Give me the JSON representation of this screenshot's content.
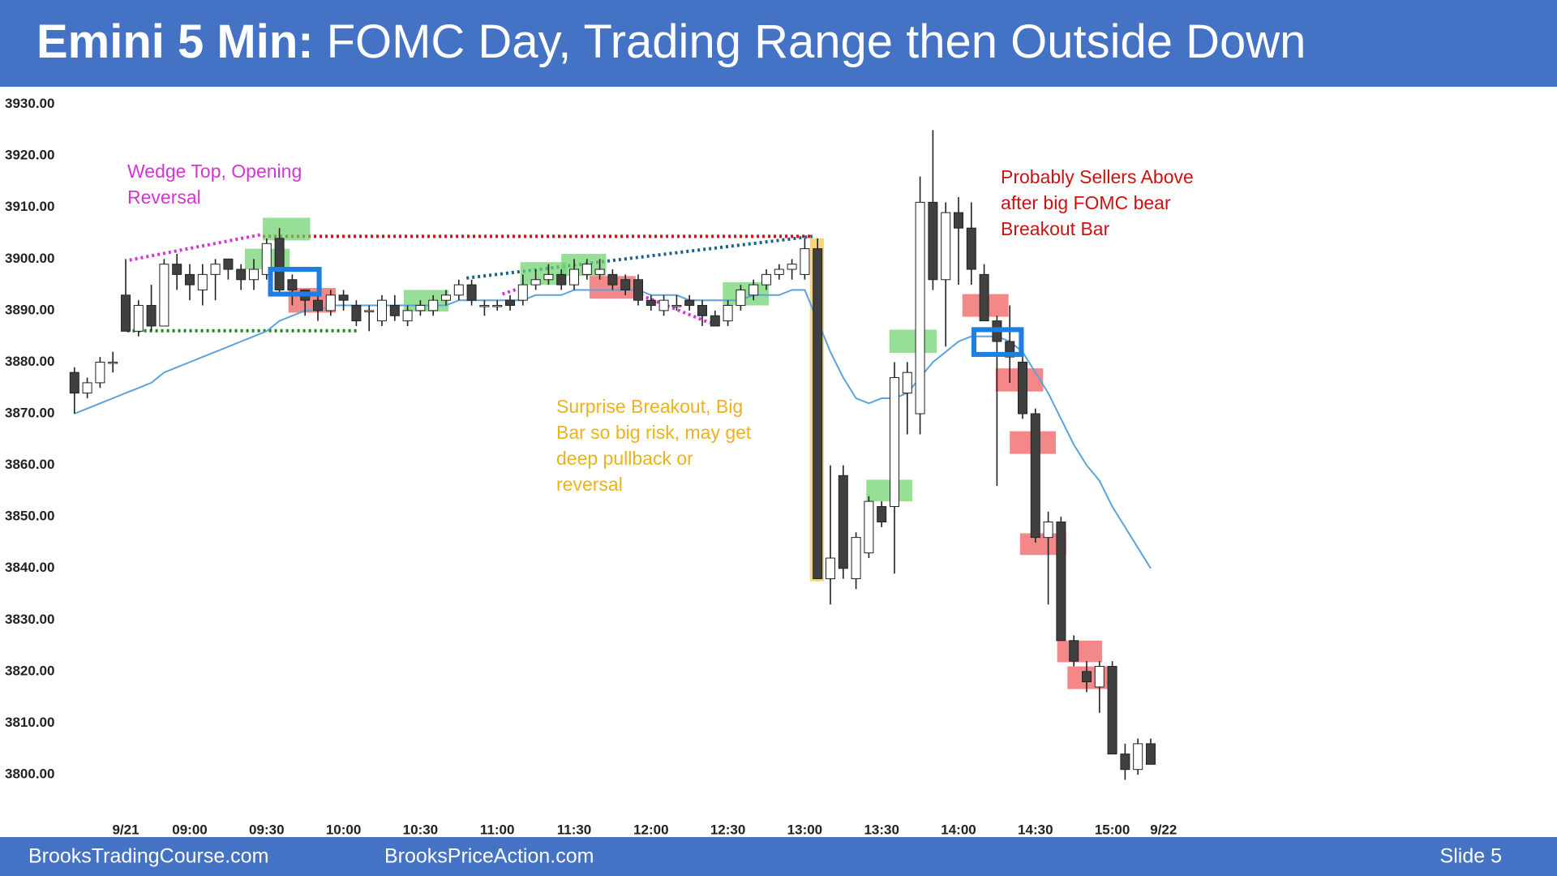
{
  "chart_data": {
    "type": "candlestick",
    "title": "Emini 5 Min:",
    "subtitle": "FOMC Day, Trading Range then Outside Down",
    "categories": [
      null,
      null,
      null,
      null,
      "9/21",
      null,
      null,
      null,
      null,
      "09:00",
      null,
      null,
      null,
      null,
      null,
      "09:30",
      null,
      null,
      null,
      null,
      null,
      "10:00",
      null,
      null,
      null,
      null,
      null,
      "10:30",
      null,
      null,
      null,
      null,
      null,
      "11:00",
      null,
      null,
      null,
      null,
      null,
      "11:30",
      null,
      null,
      null,
      null,
      null,
      "12:00",
      null,
      null,
      null,
      null,
      null,
      "12:30",
      null,
      null,
      null,
      null,
      null,
      "13:00",
      null,
      null,
      null,
      null,
      null,
      "13:30",
      null,
      null,
      null,
      null,
      null,
      "14:00",
      null,
      null,
      null,
      null,
      null,
      "14:30",
      null,
      null,
      null,
      null,
      null,
      "15:00",
      null,
      null,
      null,
      "9/22"
    ],
    "open": [
      3878,
      3874,
      3876,
      3880,
      3893,
      3886,
      3891,
      3887,
      3899,
      3897,
      3894,
      3897,
      3900,
      3898,
      3896,
      3897,
      3904,
      3896,
      3894,
      3892,
      3890,
      3893,
      3891,
      3890,
      3888,
      3891,
      3888,
      3890,
      3890,
      3892,
      3893,
      3895,
      3891,
      3891,
      3892,
      3892,
      3895,
      3896,
      3897,
      3895,
      3897,
      3897,
      3897,
      3896,
      3896,
      3892,
      3890,
      3891,
      3892,
      3891,
      3889,
      3888,
      3891,
      3893,
      3895,
      3897,
      3898,
      3897,
      3902,
      3838,
      3858,
      3838,
      3843,
      3852,
      3852,
      3874,
      3870,
      3911,
      3896,
      3909,
      3906,
      3897,
      3888,
      3884,
      3880,
      3870,
      3846,
      3849,
      3826,
      3820,
      3817,
      3821,
      3804,
      3801,
      3806,
      null
    ],
    "high": [
      3879,
      3877,
      3881,
      3882,
      3900,
      3892,
      3895,
      3900,
      3901,
      3899,
      3899,
      3900,
      3900,
      3899,
      3900,
      3904,
      3906,
      3897,
      3894,
      3894,
      3894,
      3894,
      3892,
      3891,
      3893,
      3893,
      3891,
      3892,
      3893,
      3894,
      3896,
      3896,
      3892,
      3892,
      3893,
      3897,
      3898,
      3899,
      3898,
      3900,
      3900,
      3900,
      3898,
      3897,
      3897,
      3893,
      3893,
      3893,
      3893,
      3892,
      3890,
      3892,
      3895,
      3896,
      3898,
      3899,
      3900,
      3904,
      3904,
      3860,
      3860,
      3847,
      3854,
      3853,
      3880,
      3880,
      3916,
      3925,
      3911,
      3912,
      3911,
      3899,
      3889,
      3891,
      3881,
      3871,
      3851,
      3850,
      3827,
      3822,
      3822,
      3822,
      3806,
      3807,
      3807,
      null
    ],
    "low": [
      3870,
      3873,
      3875,
      3878,
      3886,
      3885,
      3886,
      3887,
      3894,
      3892,
      3891,
      3892,
      3896,
      3894,
      3894,
      3896,
      3893,
      3891,
      3889,
      3888,
      3889,
      3890,
      3887,
      3886,
      3887,
      3888,
      3887,
      3889,
      3889,
      3891,
      3892,
      3891,
      3889,
      3890,
      3890,
      3891,
      3894,
      3895,
      3894,
      3894,
      3896,
      3896,
      3894,
      3893,
      3891,
      3890,
      3889,
      3890,
      3890,
      3887,
      3887,
      3887,
      3890,
      3892,
      3894,
      3896,
      3896,
      3896,
      3838,
      3833,
      3838,
      3836,
      3842,
      3848,
      3839,
      3866,
      3866,
      3894,
      3883,
      3895,
      3895,
      3888,
      3856,
      3876,
      3869,
      3845,
      3833,
      3826,
      3821,
      3816,
      3812,
      3804,
      3799,
      3800,
      3802,
      null
    ],
    "close": [
      3874,
      3876,
      3880,
      3880,
      3886,
      3891,
      3887,
      3899,
      3897,
      3895,
      3897,
      3899,
      3898,
      3896,
      3898,
      3903,
      3894,
      3894,
      3892,
      3890,
      3893,
      3892,
      3888,
      3890,
      3892,
      3889,
      3890,
      3891,
      3892,
      3893,
      3895,
      3892,
      3891,
      3891,
      3891,
      3895,
      3896,
      3897,
      3895,
      3898,
      3899,
      3898,
      3895,
      3894,
      3892,
      3891,
      3892,
      3891,
      3891,
      3889,
      3887,
      3891,
      3894,
      3895,
      3897,
      3898,
      3899,
      3902,
      3838,
      3842,
      3840,
      3846,
      3853,
      3849,
      3877,
      3878,
      3911,
      3896,
      3909,
      3906,
      3898,
      3888,
      3884,
      3881,
      3870,
      3846,
      3849,
      3826,
      3822,
      3818,
      3821,
      3804,
      3801,
      3806,
      3802,
      null
    ],
    "up_color": "#ffffff",
    "down_color": "#404040",
    "ema": {
      "color": "#5ba3d9",
      "values": [
        3870,
        3871,
        3872,
        3873,
        3874,
        3875,
        3876,
        3878,
        3879,
        3880,
        3881,
        3882,
        3883,
        3884,
        3885,
        3886,
        3888,
        3889,
        3890,
        3890,
        3891,
        3891,
        3891,
        3891,
        3891,
        3891,
        3891,
        3891,
        3891,
        3891,
        3892,
        3892,
        3892,
        3892,
        3892,
        3892,
        3893,
        3893,
        3893,
        3894,
        3894,
        3894,
        3894,
        3894,
        3894,
        3893,
        3893,
        3893,
        3892,
        3892,
        3892,
        3892,
        3892,
        3893,
        3893,
        3893,
        3894,
        3894,
        3888,
        3882,
        3877,
        3873,
        3872,
        3873,
        3873,
        3874,
        3877,
        3880,
        3882,
        3884,
        3885,
        3885,
        3885,
        3884,
        3882,
        3878,
        3874,
        3869,
        3864,
        3860,
        3857,
        3852,
        3848,
        3844,
        3840,
        null
      ]
    },
    "ylim": [
      3792,
      3932
    ],
    "yticks": [
      {
        "value": 3800,
        "label": "3800.00"
      },
      {
        "value": 3810,
        "label": "3810.00"
      },
      {
        "value": 3820,
        "label": "3820.00"
      },
      {
        "value": 3830,
        "label": "3830.00"
      },
      {
        "value": 3840,
        "label": "3840.00"
      },
      {
        "value": 3850,
        "label": "3850.00"
      },
      {
        "value": 3860,
        "label": "3860.00"
      },
      {
        "value": 3870,
        "label": "3870.00"
      },
      {
        "value": 3880,
        "label": "3880.00"
      },
      {
        "value": 3890,
        "label": "3890.00"
      },
      {
        "value": 3900,
        "label": "3900.00"
      },
      {
        "value": 3910,
        "label": "3910.00"
      },
      {
        "value": 3920,
        "label": "3920.00"
      },
      {
        "value": 3930,
        "label": "3930.00"
      }
    ],
    "grid": false,
    "highlights": [
      {
        "from": 14.7,
        "to": 18.4,
        "low": 3903.6,
        "high": 3908,
        "color": "#6fd36f",
        "outline": false
      },
      {
        "from": 13.3,
        "to": 16.8,
        "low": 3898,
        "high": 3902,
        "color": "#6fd36f",
        "outline": false
      },
      {
        "from": 16.7,
        "to": 20.4,
        "low": 3889.6,
        "high": 3894.4,
        "color": "#f05a5a",
        "outline": false
      },
      {
        "from": 15.3,
        "to": 19.1,
        "low": 3893.2,
        "high": 3898,
        "color": "#1e7fe0",
        "outline": true
      },
      {
        "from": 25.7,
        "to": 29.2,
        "low": 3889.8,
        "high": 3894,
        "color": "#6fd36f",
        "outline": false
      },
      {
        "from": 34.8,
        "to": 38.4,
        "low": 3895,
        "high": 3899.4,
        "color": "#6fd36f",
        "outline": false
      },
      {
        "from": 38,
        "to": 41.5,
        "low": 3896.7,
        "high": 3901,
        "color": "#6fd36f",
        "outline": false
      },
      {
        "from": 40.2,
        "to": 43.8,
        "low": 3892.3,
        "high": 3896.7,
        "color": "#f05a5a",
        "outline": false
      },
      {
        "from": 50.6,
        "to": 54.2,
        "low": 3891,
        "high": 3895.5,
        "color": "#6fd36f",
        "outline": false
      },
      {
        "from": 57.4,
        "to": 58.5,
        "low": 3837.5,
        "high": 3904,
        "color": "#f5c84a",
        "outline": false
      },
      {
        "from": 61.8,
        "to": 65.4,
        "low": 3853,
        "high": 3857.2,
        "color": "#6fd36f",
        "outline": false
      },
      {
        "from": 63.6,
        "to": 67.3,
        "low": 3881.8,
        "high": 3886.3,
        "color": "#6fd36f",
        "outline": false
      },
      {
        "from": 69.3,
        "to": 72.9,
        "low": 3888.8,
        "high": 3893.2,
        "color": "#f05a5a",
        "outline": false
      },
      {
        "from": 71.9,
        "to": 75.6,
        "low": 3874.3,
        "high": 3878.8,
        "color": "#f05a5a",
        "outline": false
      },
      {
        "from": 73,
        "to": 76.6,
        "low": 3862.2,
        "high": 3866.6,
        "color": "#f05a5a",
        "outline": false
      },
      {
        "from": 73.8,
        "to": 77.4,
        "low": 3842.6,
        "high": 3846.8,
        "color": "#f05a5a",
        "outline": false
      },
      {
        "from": 76.7,
        "to": 80.2,
        "low": 3821.8,
        "high": 3826,
        "color": "#f05a5a",
        "outline": false
      },
      {
        "from": 77.5,
        "to": 81.1,
        "low": 3816.6,
        "high": 3821,
        "color": "#f05a5a",
        "outline": false
      },
      {
        "from": 70.2,
        "to": 73.9,
        "low": 3881.5,
        "high": 3886.3,
        "color": "#1e7fe0",
        "outline": true
      }
    ],
    "trendlines": [
      {
        "x": [
          4.3,
          14.7
        ],
        "y": [
          3899.8,
          3904.8
        ],
        "color": "#d633d6"
      },
      {
        "x": [
          14.7,
          57.6
        ],
        "y": [
          3904.4,
          3904.4
        ],
        "color": "#cc1111"
      },
      {
        "x": [
          4.1,
          22.2
        ],
        "y": [
          3886.1,
          3886.1
        ],
        "color": "#1a8a1a"
      },
      {
        "x": [
          30.6,
          57.6
        ],
        "y": [
          3896.3,
          3904.4
        ],
        "color": "#1f5f8b"
      },
      {
        "x": [
          33.4,
          35.3
        ],
        "y": [
          3893.2,
          3894.8
        ],
        "color": "#d633d6"
      },
      {
        "x": [
          43.8,
          49.6
        ],
        "y": [
          3893.4,
          3887.6
        ],
        "color": "#d633d6"
      }
    ],
    "annotations": [
      {
        "lines": [
          "Wedge Top, Opening",
          "Reversal"
        ],
        "color": "#d633d6"
      },
      {
        "lines": [
          "Surprise Breakout, Big",
          "Bar so big risk, may get",
          "deep pullback or",
          "reversal"
        ],
        "color": "#eab21c"
      },
      {
        "lines": [
          "Probably Sellers Above",
          "after big  FOMC bear",
          "Breakout Bar"
        ],
        "color": "#cc1111"
      }
    ]
  },
  "footer": {
    "left": "BrooksTradingCourse.com",
    "center": "BrooksPriceAction.com",
    "right": "Slide  5"
  }
}
